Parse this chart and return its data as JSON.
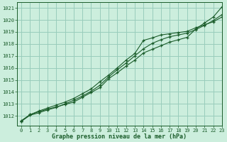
{
  "title": "Graphe pression niveau de la mer (hPa)",
  "background_color": "#cceedd",
  "plot_bg_color": "#cceedd",
  "grid_color": "#99ccbb",
  "line_color": "#1a5c2a",
  "xlim": [
    -0.5,
    23
  ],
  "ylim": [
    1011.2,
    1021.5
  ],
  "yticks": [
    1012,
    1013,
    1014,
    1015,
    1016,
    1017,
    1018,
    1019,
    1020,
    1021
  ],
  "xticks": [
    0,
    1,
    2,
    3,
    4,
    5,
    6,
    7,
    8,
    9,
    10,
    11,
    12,
    13,
    14,
    15,
    16,
    17,
    18,
    19,
    20,
    21,
    22,
    23
  ],
  "series1_x": [
    0,
    1,
    2,
    3,
    4,
    5,
    6,
    7,
    8,
    9,
    10,
    11,
    12,
    13,
    14,
    15,
    16,
    17,
    18,
    19,
    20,
    21,
    22,
    23
  ],
  "series1_y": [
    1011.6,
    1012.1,
    1012.35,
    1012.55,
    1012.75,
    1012.95,
    1013.15,
    1013.55,
    1013.95,
    1014.35,
    1015.1,
    1015.6,
    1016.15,
    1016.65,
    1017.25,
    1017.55,
    1017.85,
    1018.15,
    1018.35,
    1018.55,
    1019.25,
    1019.75,
    1020.25,
    1021.1
  ],
  "series2_x": [
    0,
    1,
    2,
    3,
    4,
    5,
    6,
    7,
    8,
    9,
    10,
    11,
    12,
    13,
    14,
    15,
    16,
    17,
    18,
    19,
    20,
    21,
    22,
    23
  ],
  "series2_y": [
    1011.55,
    1012.05,
    1012.25,
    1012.5,
    1012.7,
    1013.0,
    1013.3,
    1013.65,
    1014.05,
    1014.55,
    1015.25,
    1015.85,
    1016.4,
    1017.0,
    1017.6,
    1018.05,
    1018.35,
    1018.6,
    1018.75,
    1018.9,
    1019.2,
    1019.55,
    1019.95,
    1020.45
  ],
  "series3_x": [
    0,
    1,
    2,
    3,
    4,
    5,
    6,
    7,
    8,
    9,
    10,
    11,
    12,
    13,
    14,
    15,
    16,
    17,
    18,
    19,
    20,
    21,
    22,
    23
  ],
  "series3_y": [
    1011.55,
    1012.1,
    1012.4,
    1012.65,
    1012.9,
    1013.15,
    1013.45,
    1013.85,
    1014.25,
    1014.85,
    1015.4,
    1016.0,
    1016.65,
    1017.2,
    1018.3,
    1018.5,
    1018.75,
    1018.85,
    1018.95,
    1019.05,
    1019.35,
    1019.6,
    1019.85,
    1020.25
  ]
}
